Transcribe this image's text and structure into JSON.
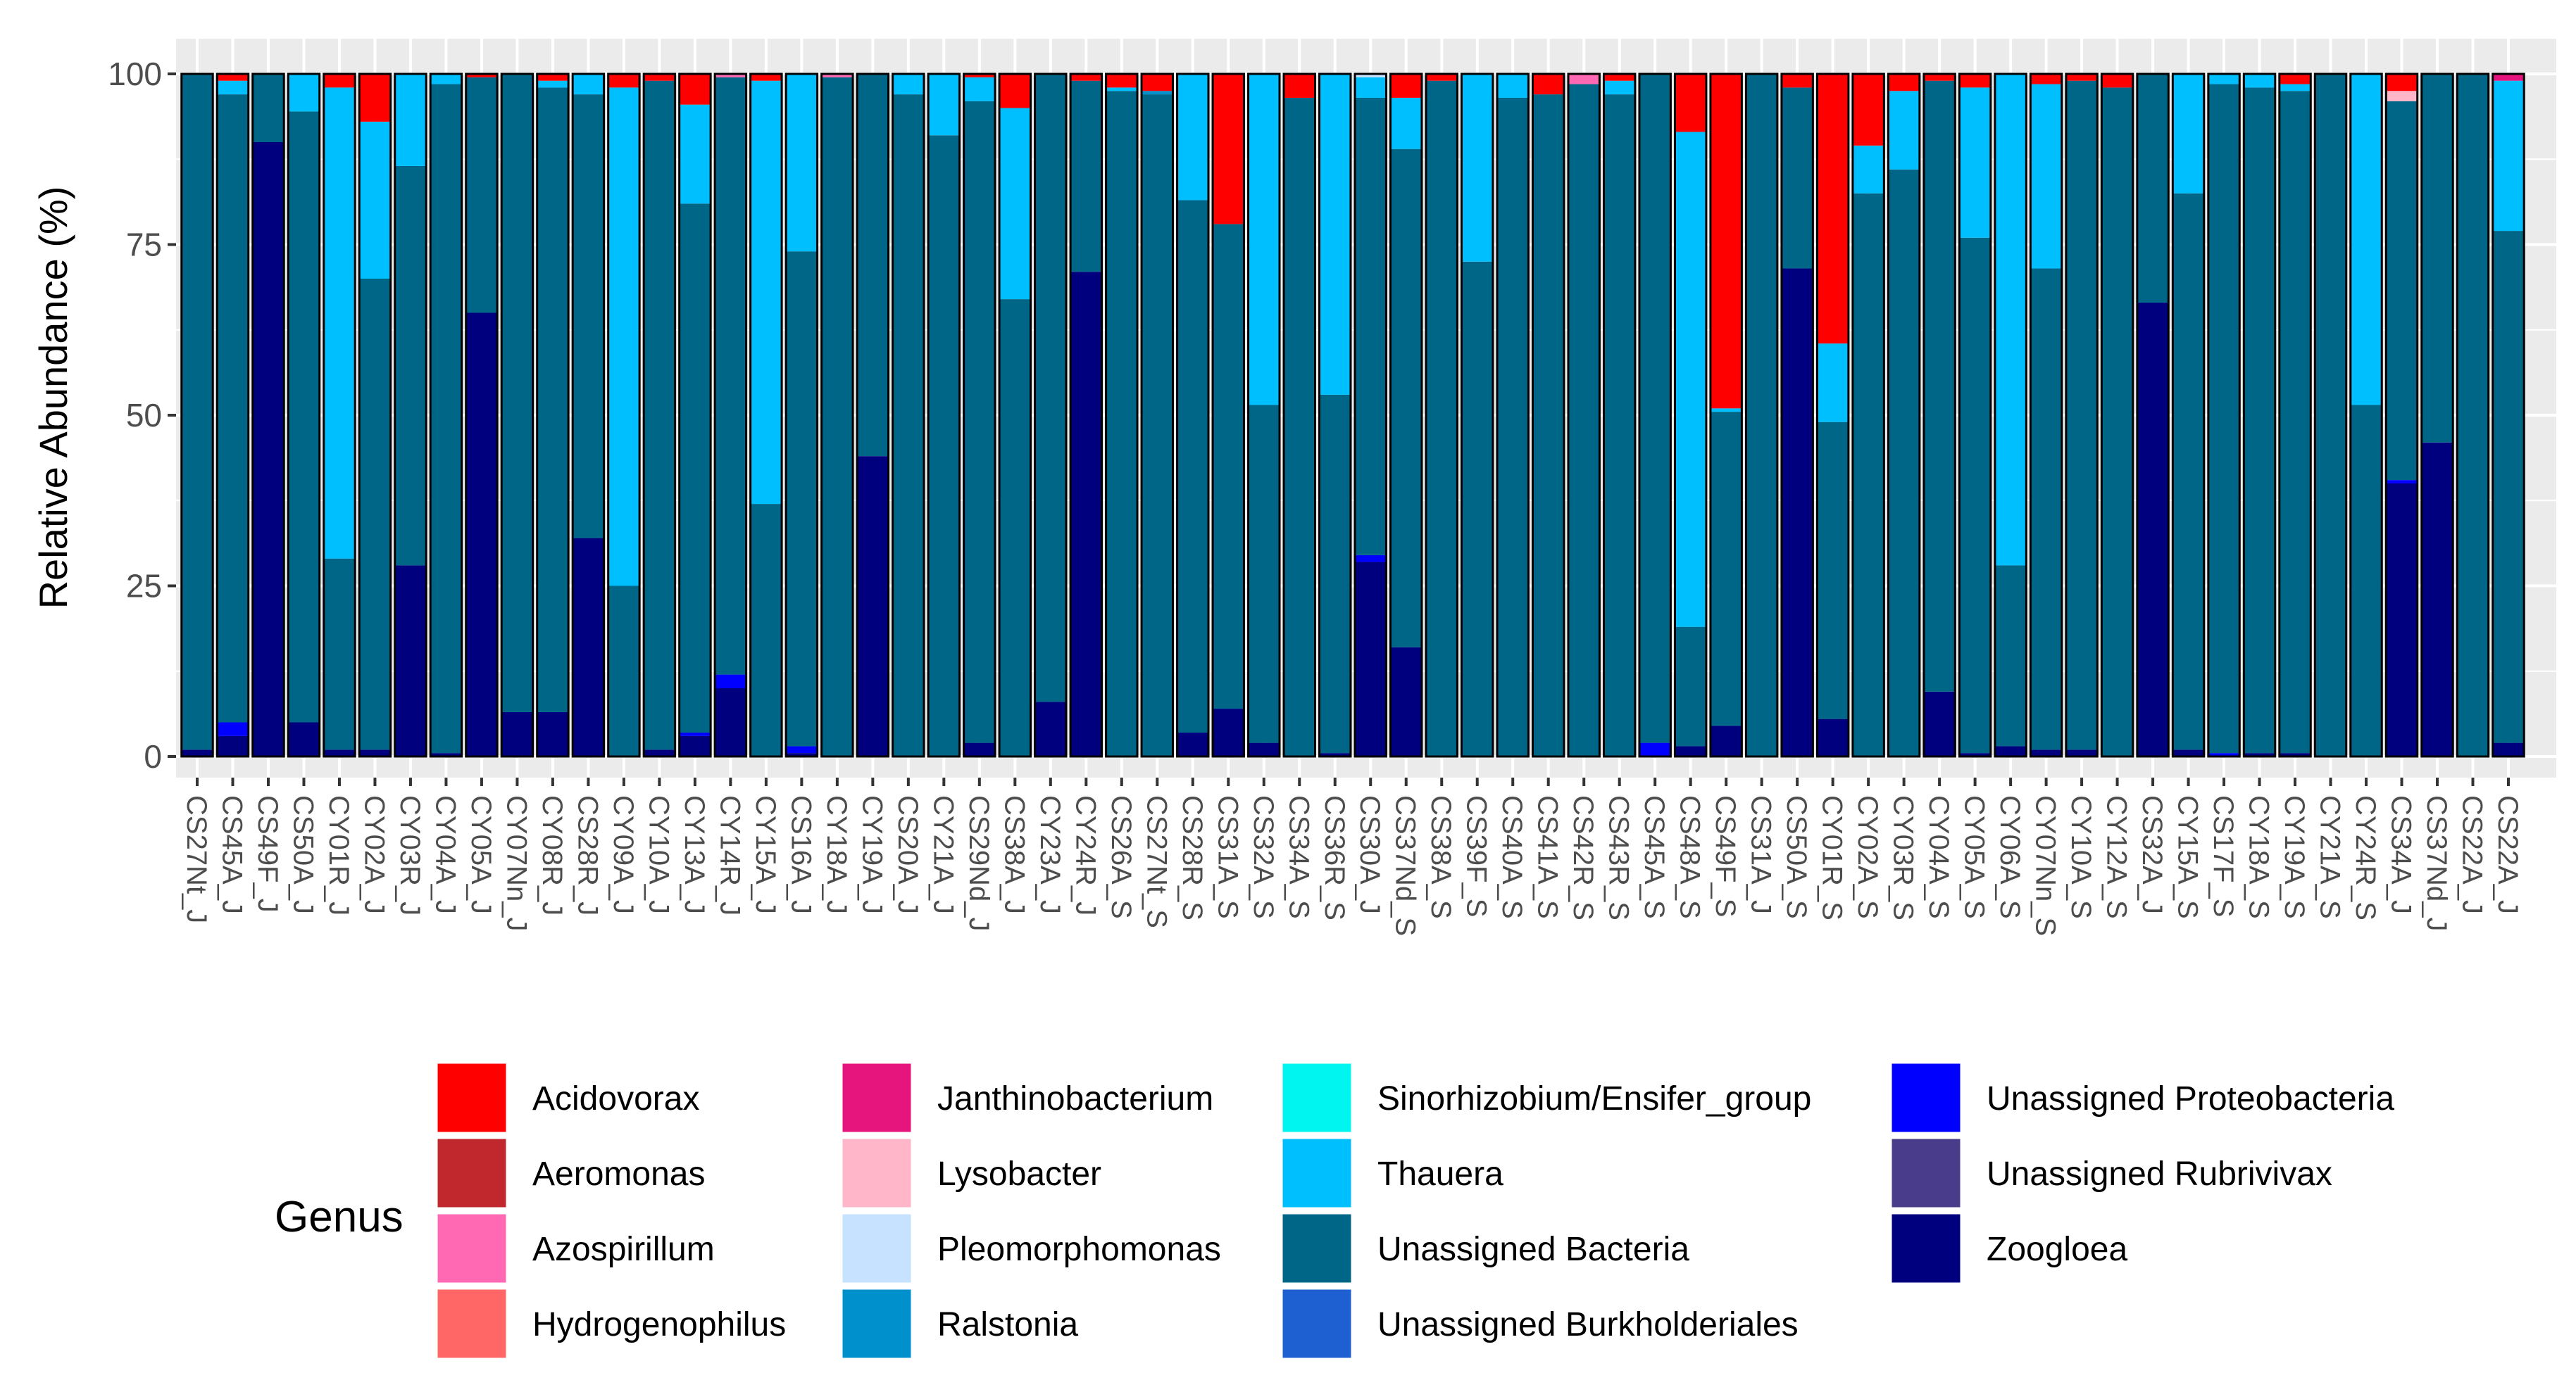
{
  "chart_data": {
    "type": "bar",
    "stacked": true,
    "title": "",
    "xlabel": "",
    "ylabel": "Relative Abundance (%)",
    "ylim": [
      0,
      100
    ],
    "yticks": [
      0,
      25,
      50,
      75,
      100
    ],
    "grid": true,
    "legend_position": "bottom",
    "legend_title": "Genus",
    "genera": [
      {
        "name": "Acidovorax",
        "color": "#FF0000"
      },
      {
        "name": "Aeromonas",
        "color": "#C0282D"
      },
      {
        "name": "Azospirillum",
        "color": "#FF69B4"
      },
      {
        "name": "Hydrogenophilus",
        "color": "#FF6666"
      },
      {
        "name": "Janthinobacterium",
        "color": "#E6147D"
      },
      {
        "name": "Lysobacter",
        "color": "#FFB6C8"
      },
      {
        "name": "Pleomorphomonas",
        "color": "#C6E2FF"
      },
      {
        "name": "Ralstonia",
        "color": "#0091CC"
      },
      {
        "name": "Sinorhizobium/Ensifer_group",
        "color": "#00F5F0"
      },
      {
        "name": "Thauera",
        "color": "#00BFFF"
      },
      {
        "name": "Unassigned Bacteria",
        "color": "#006687"
      },
      {
        "name": "Unassigned Burkholderiales",
        "color": "#1E5FD2"
      },
      {
        "name": "Unassigned Proteobacteria",
        "color": "#0000FF"
      },
      {
        "name": "Unassigned Rubrivivax",
        "color": "#483C8B"
      },
      {
        "name": "Zoogloea",
        "color": "#00007F"
      }
    ],
    "samples": [
      {
        "label": "CS27Nt_J",
        "values": {
          "Zoogloea": 1,
          "Unassigned Bacteria": 99
        }
      },
      {
        "label": "CS45A_J",
        "values": {
          "Zoogloea": 3,
          "Unassigned Proteobacteria": 2,
          "Unassigned Bacteria": 92,
          "Thauera": 2,
          "Acidovorax": 1
        }
      },
      {
        "label": "CS49F_J",
        "values": {
          "Zoogloea": 90,
          "Unassigned Bacteria": 10
        }
      },
      {
        "label": "CS50A_J",
        "values": {
          "Zoogloea": 5,
          "Unassigned Bacteria": 89.5,
          "Thauera": 5.5
        }
      },
      {
        "label": "CY01R_J",
        "values": {
          "Zoogloea": 1,
          "Unassigned Bacteria": 28,
          "Thauera": 69,
          "Acidovorax": 2
        }
      },
      {
        "label": "CY02A_J",
        "values": {
          "Zoogloea": 1,
          "Unassigned Bacteria": 69,
          "Thauera": 23,
          "Acidovorax": 7
        }
      },
      {
        "label": "CY03R_J",
        "values": {
          "Zoogloea": 28,
          "Unassigned Bacteria": 58.5,
          "Thauera": 13.5
        }
      },
      {
        "label": "CY04A_J",
        "values": {
          "Zoogloea": 0.5,
          "Unassigned Bacteria": 98,
          "Thauera": 1.5
        }
      },
      {
        "label": "CY05A_J",
        "values": {
          "Zoogloea": 65,
          "Unassigned Bacteria": 34.5,
          "Acidovorax": 0.5
        }
      },
      {
        "label": "CY07Nn_J",
        "values": {
          "Zoogloea": 6.5,
          "Unassigned Bacteria": 93.5
        }
      },
      {
        "label": "CY08R_J",
        "values": {
          "Zoogloea": 6.5,
          "Unassigned Bacteria": 91.5,
          "Thauera": 1,
          "Acidovorax": 1
        }
      },
      {
        "label": "CS28R_J",
        "values": {
          "Zoogloea": 32,
          "Unassigned Bacteria": 65,
          "Thauera": 3
        }
      },
      {
        "label": "CY09A_J",
        "values": {
          "Unassigned Bacteria": 25,
          "Thauera": 73,
          "Acidovorax": 2
        }
      },
      {
        "label": "CY10A_J",
        "values": {
          "Zoogloea": 1,
          "Unassigned Bacteria": 98,
          "Acidovorax": 1
        }
      },
      {
        "label": "CY13A_J",
        "values": {
          "Zoogloea": 3,
          "Unassigned Proteobacteria": 0.5,
          "Unassigned Bacteria": 77.5,
          "Thauera": 14.5,
          "Acidovorax": 4.5
        }
      },
      {
        "label": "CY14R_J",
        "values": {
          "Zoogloea": 10,
          "Unassigned Proteobacteria": 2,
          "Unassigned Bacteria": 87.5,
          "Azospirillum": 0.5
        }
      },
      {
        "label": "CY15A_J",
        "values": {
          "Unassigned Bacteria": 37,
          "Thauera": 62,
          "Acidovorax": 1
        }
      },
      {
        "label": "CS16A_J",
        "values": {
          "Zoogloea": 0.5,
          "Unassigned Proteobacteria": 1,
          "Unassigned Bacteria": 72.5,
          "Thauera": 26
        }
      },
      {
        "label": "CY18A_J",
        "values": {
          "Unassigned Bacteria": 99.5,
          "Azospirillum": 0.5
        }
      },
      {
        "label": "CY19A_J",
        "values": {
          "Zoogloea": 44,
          "Unassigned Bacteria": 56
        }
      },
      {
        "label": "CS20A_J",
        "values": {
          "Unassigned Bacteria": 97,
          "Thauera": 3
        }
      },
      {
        "label": "CY21A_J",
        "values": {
          "Unassigned Bacteria": 91,
          "Thauera": 9
        }
      },
      {
        "label": "CS29Nd_J",
        "values": {
          "Zoogloea": 2,
          "Unassigned Bacteria": 94,
          "Thauera": 3.5,
          "Acidovorax": 0.5
        }
      },
      {
        "label": "CS38A_J",
        "values": {
          "Unassigned Bacteria": 67,
          "Thauera": 28,
          "Acidovorax": 5
        }
      },
      {
        "label": "CY23A_J",
        "values": {
          "Zoogloea": 8,
          "Unassigned Bacteria": 92
        }
      },
      {
        "label": "CY24R_J",
        "values": {
          "Zoogloea": 71,
          "Unassigned Bacteria": 28,
          "Acidovorax": 1
        }
      },
      {
        "label": "CS26A_S",
        "values": {
          "Unassigned Bacteria": 97.5,
          "Thauera": 0.5,
          "Acidovorax": 2
        }
      },
      {
        "label": "CS27Nt_S",
        "values": {
          "Unassigned Bacteria": 97,
          "Ralstonia": 0.5,
          "Acidovorax": 2.5
        }
      },
      {
        "label": "CS28R_S",
        "values": {
          "Zoogloea": 3.5,
          "Unassigned Bacteria": 78,
          "Thauera": 18.5
        }
      },
      {
        "label": "CS31A_S",
        "values": {
          "Zoogloea": 7,
          "Unassigned Bacteria": 71,
          "Acidovorax": 22
        }
      },
      {
        "label": "CS32A_S",
        "values": {
          "Zoogloea": 2,
          "Unassigned Bacteria": 49.5,
          "Thauera": 48.5
        }
      },
      {
        "label": "CS34A_S",
        "values": {
          "Unassigned Bacteria": 96.5,
          "Acidovorax": 3.5
        }
      },
      {
        "label": "CS36R_S",
        "values": {
          "Zoogloea": 0.5,
          "Unassigned Bacteria": 52.5,
          "Thauera": 47
        }
      },
      {
        "label": "CS30A_J",
        "values": {
          "Zoogloea": 28.5,
          "Unassigned Proteobacteria": 1,
          "Unassigned Bacteria": 67,
          "Thauera": 3,
          "Pleomorphomonas": 0.5
        }
      },
      {
        "label": "CS37Nd_S",
        "values": {
          "Zoogloea": 16,
          "Unassigned Bacteria": 73,
          "Thauera": 7.5,
          "Acidovorax": 3.5
        }
      },
      {
        "label": "CS38A_S",
        "values": {
          "Unassigned Bacteria": 99,
          "Acidovorax": 1
        }
      },
      {
        "label": "CS39F_S",
        "values": {
          "Unassigned Bacteria": 72.5,
          "Thauera": 27.5
        }
      },
      {
        "label": "CS40A_S",
        "values": {
          "Unassigned Bacteria": 96.5,
          "Thauera": 3.5
        }
      },
      {
        "label": "CS41A_S",
        "values": {
          "Unassigned Bacteria": 97,
          "Acidovorax": 3
        }
      },
      {
        "label": "CS42R_S",
        "values": {
          "Unassigned Bacteria": 98.5,
          "Azospirillum": 1.5
        }
      },
      {
        "label": "CS43R_S",
        "values": {
          "Unassigned Bacteria": 97,
          "Thauera": 2,
          "Acidovorax": 1
        }
      },
      {
        "label": "CS45A_S",
        "values": {
          "Unassigned Proteobacteria": 2,
          "Unassigned Bacteria": 98
        }
      },
      {
        "label": "CS48A_S",
        "values": {
          "Zoogloea": 1.5,
          "Unassigned Bacteria": 17.5,
          "Thauera": 72.5,
          "Acidovorax": 8.5
        }
      },
      {
        "label": "CS49F_S",
        "values": {
          "Zoogloea": 4.5,
          "Unassigned Bacteria": 46,
          "Thauera": 0.5,
          "Acidovorax": 49
        }
      },
      {
        "label": "CS31A_J",
        "values": {
          "Unassigned Bacteria": 100
        }
      },
      {
        "label": "CS50A_S",
        "values": {
          "Zoogloea": 71.5,
          "Unassigned Bacteria": 26.5,
          "Acidovorax": 2
        }
      },
      {
        "label": "CY01R_S",
        "values": {
          "Zoogloea": 5.5,
          "Unassigned Bacteria": 43.5,
          "Thauera": 11.5,
          "Acidovorax": 39.5
        }
      },
      {
        "label": "CY02A_S",
        "values": {
          "Unassigned Bacteria": 82.5,
          "Thauera": 7,
          "Acidovorax": 10.5
        }
      },
      {
        "label": "CY03R_S",
        "values": {
          "Unassigned Bacteria": 86,
          "Thauera": 11.5,
          "Acidovorax": 2.5
        }
      },
      {
        "label": "CY04A_S",
        "values": {
          "Zoogloea": 9.5,
          "Unassigned Bacteria": 89.5,
          "Acidovorax": 1
        }
      },
      {
        "label": "CY05A_S",
        "values": {
          "Zoogloea": 0.5,
          "Unassigned Bacteria": 75.5,
          "Thauera": 22,
          "Acidovorax": 2
        }
      },
      {
        "label": "CY06A_S",
        "values": {
          "Zoogloea": 1.5,
          "Unassigned Bacteria": 26.5,
          "Thauera": 72
        }
      },
      {
        "label": "CY07Nn_S",
        "values": {
          "Zoogloea": 1,
          "Unassigned Bacteria": 70.5,
          "Thauera": 27,
          "Acidovorax": 1.5
        }
      },
      {
        "label": "CY10A_S",
        "values": {
          "Zoogloea": 1,
          "Unassigned Bacteria": 98,
          "Acidovorax": 1
        }
      },
      {
        "label": "CY12A_S",
        "values": {
          "Unassigned Bacteria": 98,
          "Acidovorax": 2
        }
      },
      {
        "label": "CS32A_J",
        "values": {
          "Zoogloea": 66.5,
          "Unassigned Bacteria": 33.5
        }
      },
      {
        "label": "CY15A_S",
        "values": {
          "Zoogloea": 1,
          "Unassigned Bacteria": 81.5,
          "Thauera": 17.5
        }
      },
      {
        "label": "CS17F_S",
        "values": {
          "Unassigned Proteobacteria": 0.5,
          "Unassigned Bacteria": 98,
          "Thauera": 1.5
        }
      },
      {
        "label": "CY18A_S",
        "values": {
          "Zoogloea": 0.5,
          "Unassigned Bacteria": 97.5,
          "Thauera": 2
        }
      },
      {
        "label": "CY19A_S",
        "values": {
          "Zoogloea": 0.5,
          "Unassigned Bacteria": 97,
          "Thauera": 1,
          "Acidovorax": 1.5
        }
      },
      {
        "label": "CY21A_S",
        "values": {
          "Unassigned Bacteria": 100
        }
      },
      {
        "label": "CY24R_S",
        "values": {
          "Unassigned Bacteria": 51.5,
          "Thauera": 48.5
        }
      },
      {
        "label": "CS34A_J",
        "values": {
          "Zoogloea": 40,
          "Unassigned Proteobacteria": 0.5,
          "Unassigned Bacteria": 55.5,
          "Lysobacter": 1.5,
          "Acidovorax": 2.5
        }
      },
      {
        "label": "CS37Nd_J",
        "values": {
          "Zoogloea": 46,
          "Unassigned Bacteria": 54
        }
      },
      {
        "label": "CS22A_J",
        "values": {
          "Unassigned Bacteria": 100
        }
      },
      {
        "label": "CS22A_J",
        "values": {
          "Zoogloea": 2,
          "Unassigned Bacteria": 75,
          "Thauera": 22,
          "Janthinobacterium": 1
        }
      }
    ]
  }
}
